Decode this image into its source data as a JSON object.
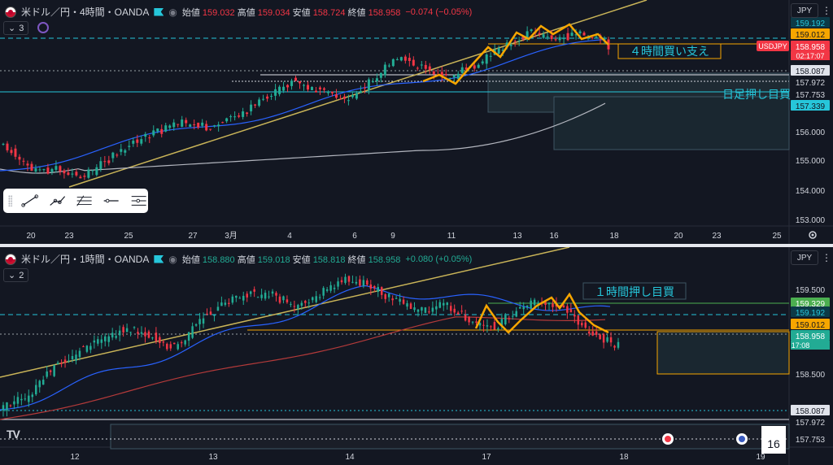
{
  "top_pane": {
    "symbol": "米ドル／円・4時間・OANDA",
    "ohlc": [
      {
        "k": "始値",
        "v": "159.032",
        "tone": "red"
      },
      {
        "k": "高値",
        "v": "159.034",
        "tone": "red"
      },
      {
        "k": "安値",
        "v": "158.724",
        "tone": "red"
      },
      {
        "k": "終値",
        "v": "158.958",
        "tone": "red"
      }
    ],
    "change": "−0.074 (−0.05%)",
    "indicator_count": "3",
    "currency": "JPY",
    "annotation_support": "４時間買い支え",
    "annotation_daily": "日足押し目買",
    "symbol_tag": "USDJPY",
    "countdown": "02:17:07",
    "price_labels": [
      {
        "text": "159.192",
        "bg": "#0c3a47",
        "fg": "#26c6da"
      },
      {
        "text": "159.012",
        "bg": "#f7a600",
        "fg": "#131722"
      },
      {
        "text": "158.958",
        "bg": "#f23645",
        "fg": "#ffffff"
      },
      {
        "text": "158.087",
        "bg": "#e0e3eb",
        "fg": "#131722"
      },
      {
        "text": "157.972",
        "bg": "#131722",
        "fg": "#d1d4dc"
      },
      {
        "text": "157.753",
        "bg": "#131722",
        "fg": "#d1d4dc"
      },
      {
        "text": "157.339",
        "bg": "#26c6da",
        "fg": "#131722"
      },
      {
        "text": "156.000",
        "bg": "",
        "fg": "#d1d4dc"
      },
      {
        "text": "155.000",
        "bg": "",
        "fg": "#d1d4dc"
      },
      {
        "text": "154.000",
        "bg": "",
        "fg": "#d1d4dc"
      },
      {
        "text": "153.000",
        "bg": "",
        "fg": "#d1d4dc"
      }
    ],
    "time_labels": [
      "20",
      "23",
      "25",
      "27",
      "3月",
      "4",
      "6",
      "9",
      "11",
      "13",
      "16",
      "18",
      "20",
      "23",
      "25"
    ]
  },
  "bottom_pane": {
    "symbol": "米ドル／円・1時間・OANDA",
    "ohlc": [
      {
        "k": "始値",
        "v": "158.880",
        "tone": "green"
      },
      {
        "k": "高値",
        "v": "159.018",
        "tone": "green"
      },
      {
        "k": "安値",
        "v": "158.818",
        "tone": "green"
      },
      {
        "k": "終値",
        "v": "158.958",
        "tone": "green"
      }
    ],
    "change": "+0.080 (+0.05%)",
    "indicator_count": "2",
    "currency": "JPY",
    "annotation_pullback": "１時間押し目買",
    "countdown": "17:08",
    "price_labels": [
      {
        "text": "159.500",
        "bg": "",
        "fg": "#d1d4dc"
      },
      {
        "text": "159.329",
        "bg": "#4caf50",
        "fg": "#ffffff"
      },
      {
        "text": "159.192",
        "bg": "#0c3a47",
        "fg": "#26c6da"
      },
      {
        "text": "159.012",
        "bg": "#f7a600",
        "fg": "#131722"
      },
      {
        "text": "158.958",
        "bg": "#22ab94",
        "fg": "#ffffff"
      },
      {
        "text": "158.500",
        "bg": "",
        "fg": "#d1d4dc"
      },
      {
        "text": "158.087",
        "bg": "#e0e3eb",
        "fg": "#131722"
      },
      {
        "text": "157.972",
        "bg": "#131722",
        "fg": "#d1d4dc"
      },
      {
        "text": "157.753",
        "bg": "#131722",
        "fg": "#d1d4dc"
      }
    ],
    "time_labels": [
      "12",
      "13",
      "14",
      "17",
      "18",
      "19"
    ],
    "calendar_day": "16"
  },
  "colors": {
    "bull": "#22ab94",
    "bear": "#f23645",
    "trendline": "#c9b458",
    "pattern": "#f7a600",
    "ma_blue": "#2962ff",
    "ma_white": "#b2b5be",
    "ma_red": "#b33a3a",
    "dash_cyan": "#26c6da"
  },
  "icons": [
    "flag-icon",
    "eye-icon",
    "chevron-icon",
    "circle-indicator-icon",
    "line-tool-icon",
    "trendline-tool-icon",
    "fib-tool-icon",
    "ray-tool-icon",
    "parallel-tool-icon",
    "gear-icon",
    "menu-icon",
    "tradingview-logo-icon",
    "us-flag-icon",
    "event-icon"
  ]
}
